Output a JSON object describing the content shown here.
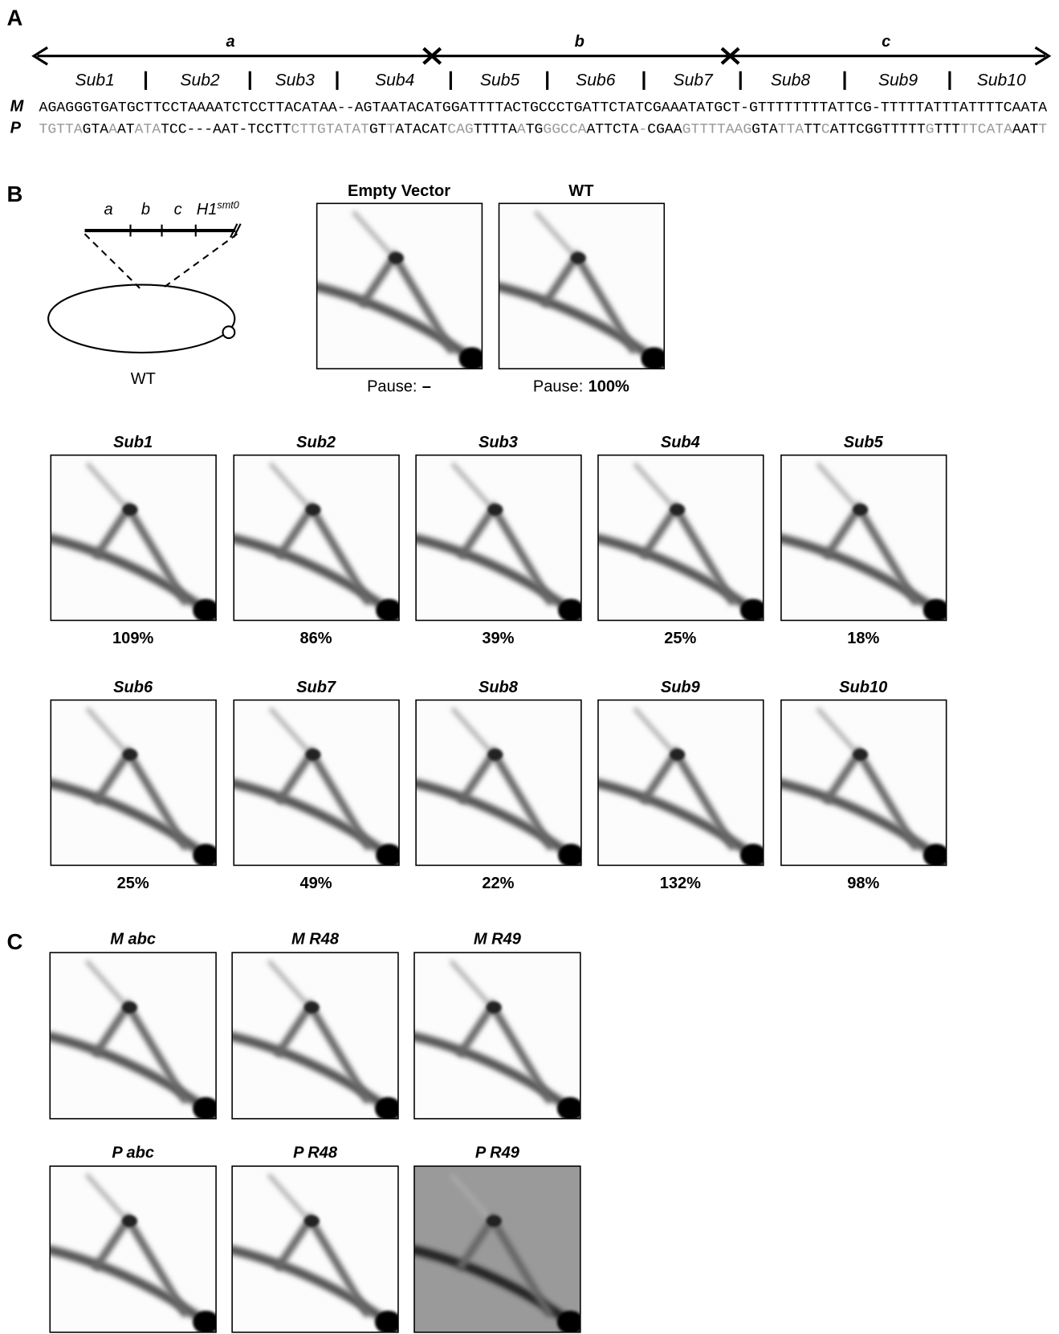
{
  "panel_a": {
    "label": "A",
    "regions": [
      "a",
      "b",
      "c"
    ],
    "subs": [
      "Sub1",
      "Sub2",
      "Sub3",
      "Sub4",
      "Sub5",
      "Sub6",
      "Sub7",
      "Sub8",
      "Sub9",
      "Sub10"
    ],
    "rows": [
      {
        "label": "M",
        "segments": [
          {
            "text": "AGAGGGTGATGCTTCCTAAAATCTCCTTACATAA--AGTAATACATGGATTTTACTGCCCTGATTCTATCGAAATATGCT-GTTTTTTTTATTCG-TTTTTATTTATTTTCAATA",
            "color": "#000000"
          }
        ]
      },
      {
        "label": "P",
        "segments": [
          {
            "text": "TGTTA",
            "color": "#999999"
          },
          {
            "text": "GTA",
            "color": "#000000"
          },
          {
            "text": "A",
            "color": "#999999"
          },
          {
            "text": "AT",
            "color": "#000000"
          },
          {
            "text": "ATA",
            "color": "#999999"
          },
          {
            "text": "TCC---AAT-TCCTT",
            "color": "#000000"
          },
          {
            "text": "CTTGTATAT",
            "color": "#999999"
          },
          {
            "text": "GT",
            "color": "#000000"
          },
          {
            "text": "T",
            "color": "#999999"
          },
          {
            "text": "ATACAT",
            "color": "#000000"
          },
          {
            "text": "CAG",
            "color": "#999999"
          },
          {
            "text": "TTTTA",
            "color": "#000000"
          },
          {
            "text": "A",
            "color": "#999999"
          },
          {
            "text": "TG",
            "color": "#000000"
          },
          {
            "text": "GGCCA",
            "color": "#999999"
          },
          {
            "text": "ATTCTA",
            "color": "#000000"
          },
          {
            "text": "-",
            "color": "#999999"
          },
          {
            "text": "CGAA",
            "color": "#000000"
          },
          {
            "text": "GTTTTAAG",
            "color": "#999999"
          },
          {
            "text": "GTA",
            "color": "#000000"
          },
          {
            "text": "TTA",
            "color": "#999999"
          },
          {
            "text": "TT",
            "color": "#000000"
          },
          {
            "text": "C",
            "color": "#999999"
          },
          {
            "text": "ATTCGGTTTTT",
            "color": "#000000"
          },
          {
            "text": "G",
            "color": "#999999"
          },
          {
            "text": "TTT",
            "color": "#000000"
          },
          {
            "text": "TTCATA",
            "color": "#999999"
          },
          {
            "text": "AAT",
            "color": "#000000"
          },
          {
            "text": "T",
            "color": "#999999"
          }
        ]
      }
    ]
  },
  "panel_b": {
    "label": "B",
    "diagram": {
      "segments": [
        "a",
        "b",
        "c"
      ],
      "gene": "H1",
      "gene_sup": "smt0",
      "plasmid": "WT"
    },
    "controls": [
      {
        "title": "Empty Vector",
        "pause_label": "Pause:",
        "pause": "–"
      },
      {
        "title": "WT",
        "pause_label": "Pause:",
        "pause": "100%"
      }
    ],
    "mutants": [
      {
        "title": "Sub1",
        "pause": "109%"
      },
      {
        "title": "Sub2",
        "pause": "86%"
      },
      {
        "title": "Sub3",
        "pause": "39%"
      },
      {
        "title": "Sub4",
        "pause": "25%"
      },
      {
        "title": "Sub5",
        "pause": "18%"
      },
      {
        "title": "Sub6",
        "pause": "25%"
      },
      {
        "title": "Sub7",
        "pause": "49%"
      },
      {
        "title": "Sub8",
        "pause": "22%"
      },
      {
        "title": "Sub9",
        "pause": "132%"
      },
      {
        "title": "Sub10",
        "pause": "98%"
      }
    ]
  },
  "panel_c": {
    "label": "C",
    "gels": [
      {
        "title": "M abc"
      },
      {
        "title": "M R48"
      },
      {
        "title": "M R49"
      },
      {
        "title": "P abc"
      },
      {
        "title": "P R48"
      },
      {
        "title": "P R49"
      }
    ]
  }
}
